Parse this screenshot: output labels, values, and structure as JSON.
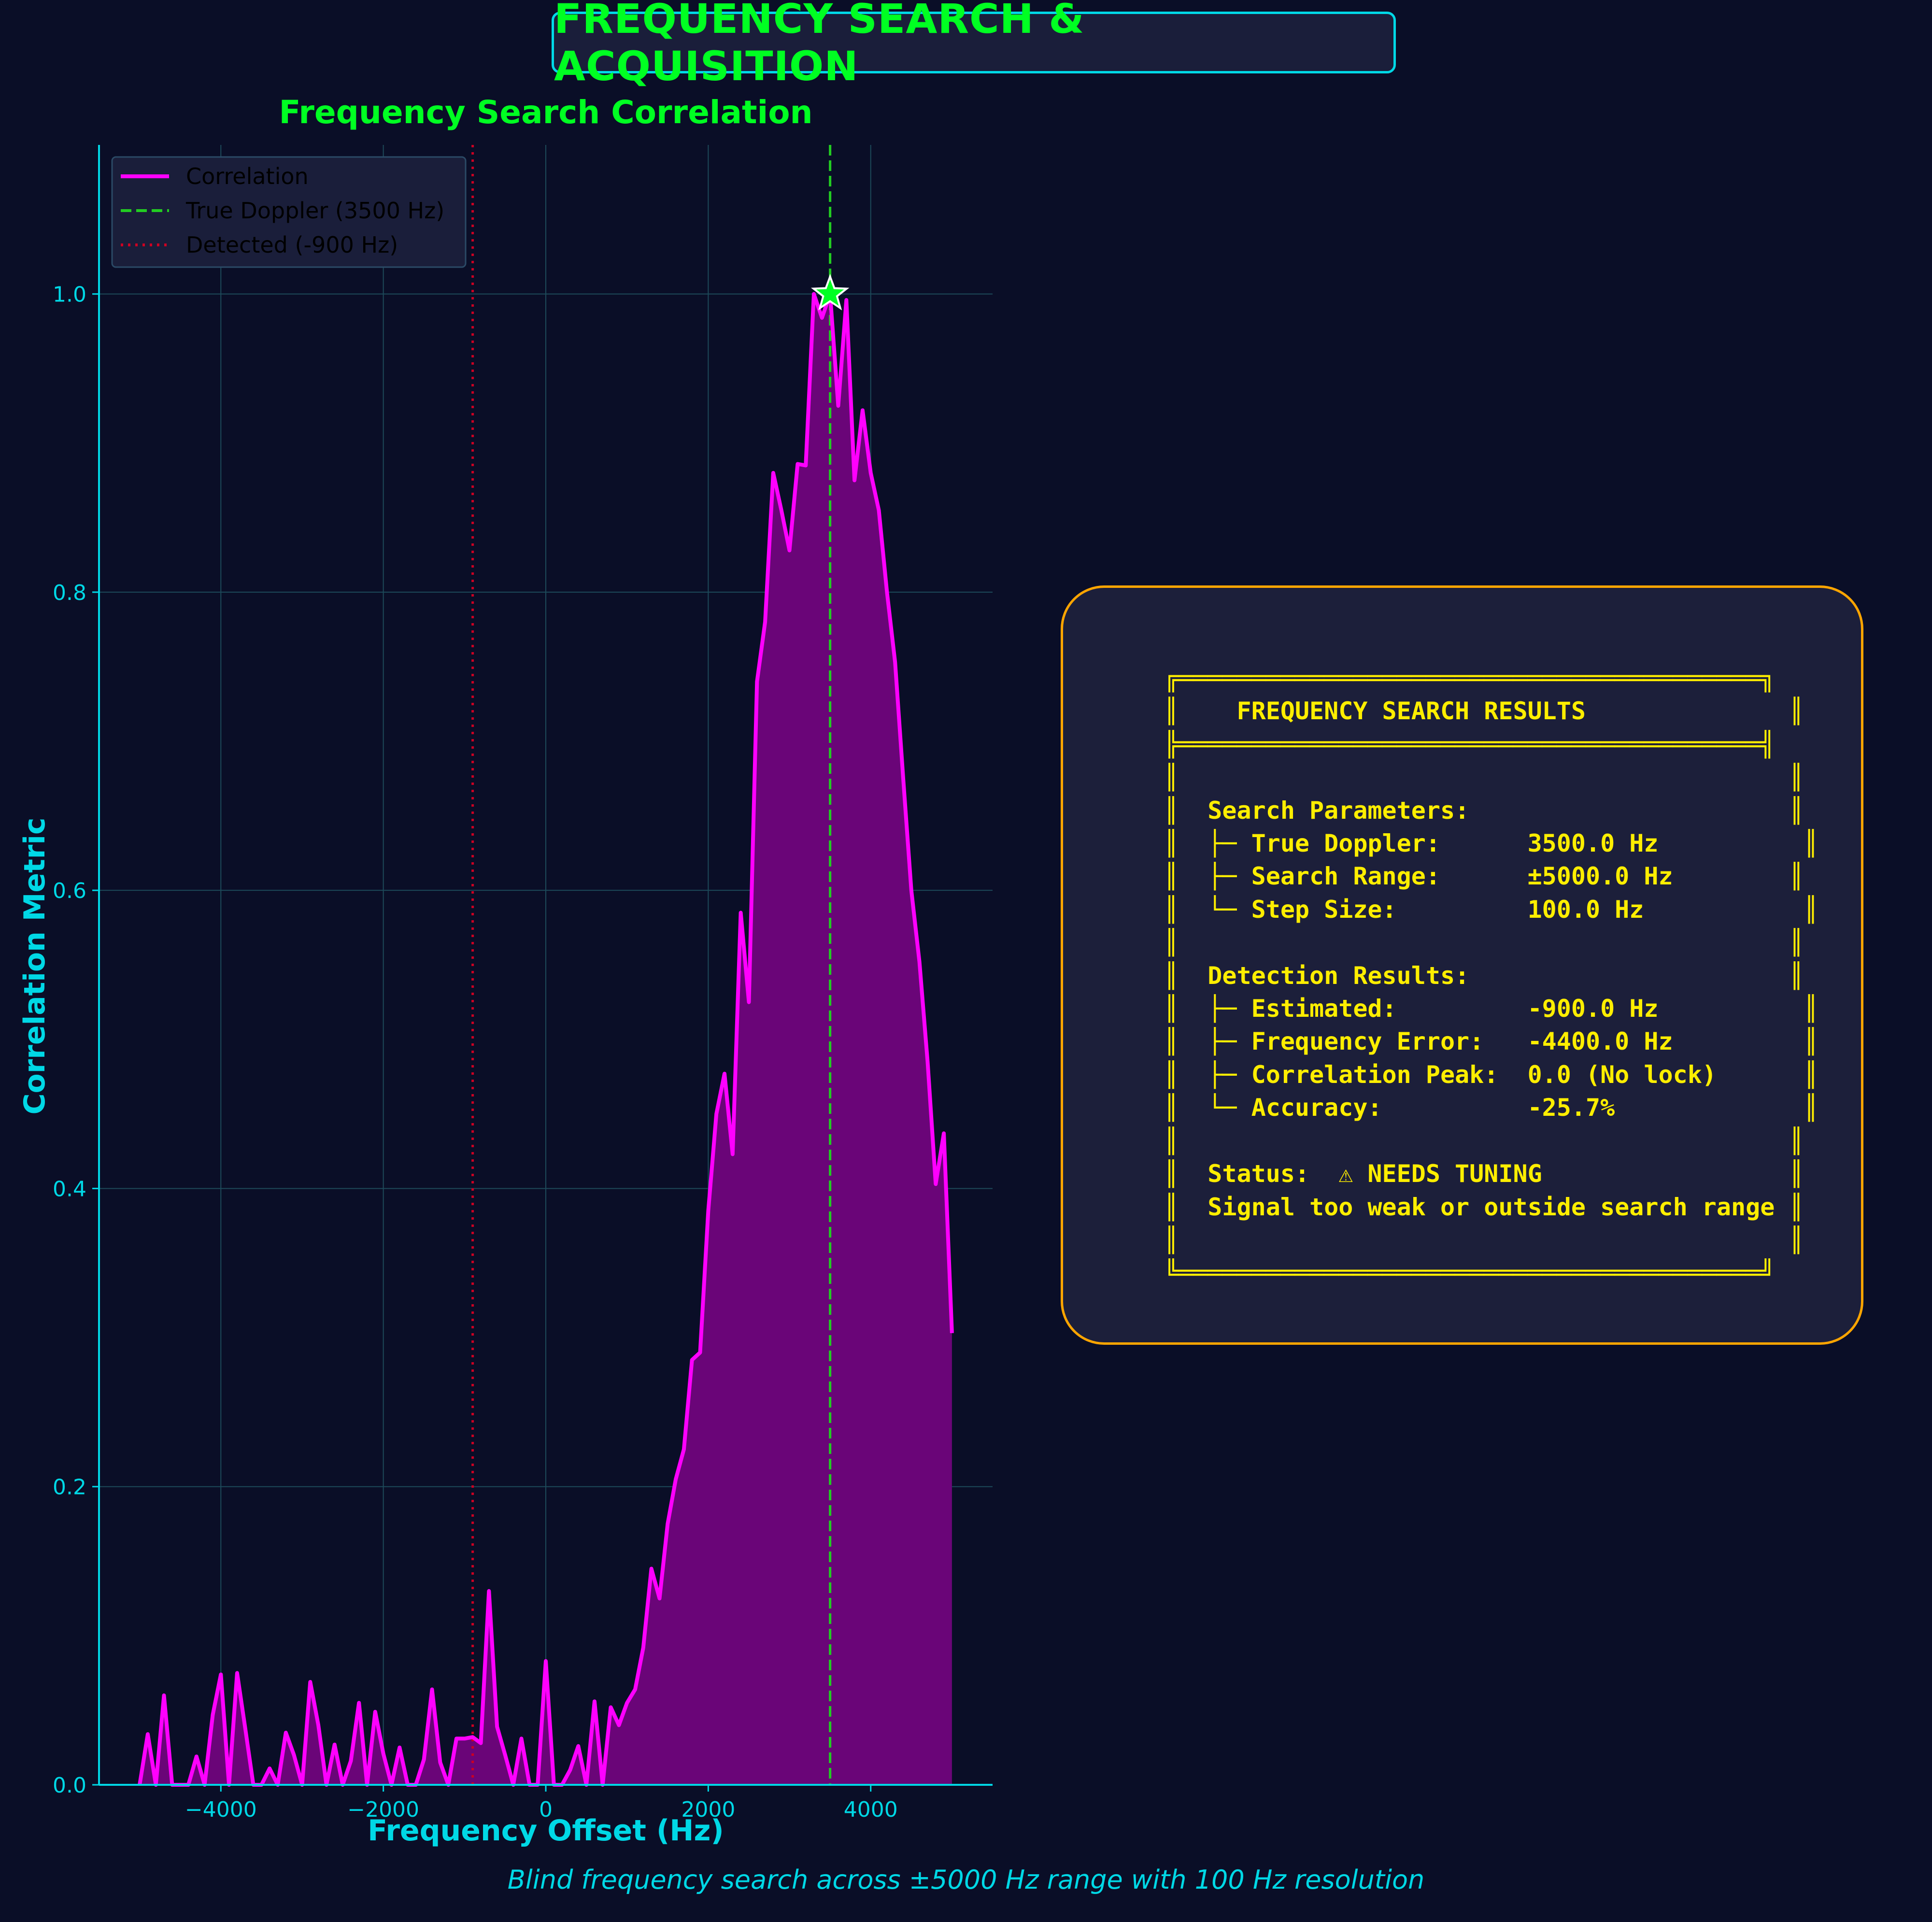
{
  "title": "FREQUENCY SEARCH & ACQUISITION",
  "caption": "Blind frequency search across ±5000 Hz range with 100 Hz resolution",
  "colors": {
    "background": "#0a0e27",
    "accent_cyan": "#00d8e6",
    "title_green": "#00ff22",
    "correlation": "#ff00ff",
    "fill": "#6a0578",
    "true_doppler": "#22cc22",
    "detected": "#cc0022",
    "results_text": "#ffee00",
    "panel_border": "#ffa500"
  },
  "chart_data": {
    "type": "line",
    "title": "Frequency Search Correlation",
    "xlabel": "Frequency Offset (Hz)",
    "ylabel": "Correlation Metric",
    "xlim": [
      -5500,
      5500
    ],
    "ylim": [
      0,
      1.1
    ],
    "xticks": [
      -4000,
      -2000,
      0,
      2000,
      4000
    ],
    "xtick_labels": [
      "−4000",
      "−2000",
      "0",
      "2000",
      "4000"
    ],
    "yticks": [
      0.0,
      0.2,
      0.4,
      0.6,
      0.8,
      1.0
    ],
    "ytick_labels": [
      "0.0",
      "0.2",
      "0.4",
      "0.6",
      "0.8",
      "1.0"
    ],
    "grid": true,
    "legend": "top-left",
    "series": [
      {
        "name": "Correlation",
        "style": "solid",
        "filled": true,
        "x": [
          -5000,
          -4900,
          -4800,
          -4700,
          -4600,
          -4500,
          -4400,
          -4300,
          -4200,
          -4100,
          -4000,
          -3900,
          -3800,
          -3700,
          -3600,
          -3500,
          -3400,
          -3300,
          -3200,
          -3100,
          -3000,
          -2900,
          -2800,
          -2700,
          -2600,
          -2500,
          -2400,
          -2300,
          -2200,
          -2100,
          -2000,
          -1900,
          -1800,
          -1700,
          -1600,
          -1500,
          -1400,
          -1300,
          -1200,
          -1100,
          -1000,
          -900,
          -800,
          -700,
          -600,
          -500,
          -400,
          -300,
          -200,
          -100,
          0,
          100,
          200,
          300,
          400,
          500,
          600,
          700,
          800,
          900,
          1000,
          1100,
          1200,
          1300,
          1400,
          1500,
          1600,
          1700,
          1800,
          1900,
          2000,
          2100,
          2200,
          2300,
          2400,
          2500,
          2600,
          2700,
          2800,
          2900,
          3000,
          3100,
          3200,
          3300,
          3400,
          3500,
          3600,
          3700,
          3800,
          3900,
          4000,
          4100,
          4200,
          4300,
          4400,
          4500,
          4600,
          4700,
          4800,
          4900,
          5000
        ],
        "y": [
          0.0,
          0.034,
          0.0,
          0.06,
          0.0,
          0.0,
          0.0,
          0.019,
          0.0,
          0.047,
          0.074,
          0.0,
          0.075,
          0.038,
          0.0,
          0.0,
          0.011,
          0.0,
          0.035,
          0.02,
          0.0,
          0.069,
          0.04,
          0.0,
          0.027,
          0.0,
          0.016,
          0.055,
          0.0,
          0.049,
          0.021,
          0.0,
          0.025,
          0.0,
          0.0,
          0.017,
          0.064,
          0.015,
          0.0,
          0.031,
          0.031,
          0.032,
          0.028,
          0.13,
          0.039,
          0.02,
          0.0,
          0.031,
          0.0,
          0.0,
          0.083,
          0.0,
          0.0,
          0.01,
          0.026,
          0.0,
          0.056,
          0.0,
          0.052,
          0.04,
          0.055,
          0.064,
          0.092,
          0.145,
          0.125,
          0.175,
          0.205,
          0.225,
          0.285,
          0.29,
          0.385,
          0.45,
          0.477,
          0.423,
          0.585,
          0.525,
          0.74,
          0.78,
          0.88,
          0.855,
          0.828,
          0.886,
          0.885,
          1.0,
          0.984,
          1.0,
          0.925,
          0.996,
          0.875,
          0.922,
          0.88,
          0.855,
          0.8,
          0.753,
          0.675,
          0.6,
          0.552,
          0.485,
          0.403,
          0.437,
          0.303
        ]
      },
      {
        "name": "True Doppler (3500 Hz)",
        "style": "dashed",
        "x_value": 3500
      },
      {
        "name": "Detected (-900 Hz)",
        "style": "dotted",
        "x_value": -900
      }
    ],
    "peak_marker": {
      "x": 3500,
      "y": 1.0,
      "shape": "star"
    }
  },
  "results_lines": [
    "╔════════════════════════════════════════╗",
    "║    FREQUENCY SEARCH RESULTS              ║",
    "╠════════════════════════════════════════╣",
    "║                                          ║",
    "║  Search Parameters:                      ║",
    "║  ├─ True Doppler:      3500.0 Hz          ║",
    "║  ├─ Search Range:      ±5000.0 Hz        ║",
    "║  └─ Step Size:         100.0 Hz           ║",
    "║                                          ║",
    "║  Detection Results:                      ║",
    "║  ├─ Estimated:         -900.0 Hz          ║",
    "║  ├─ Frequency Error:   -4400.0 Hz         ║",
    "║  ├─ Correlation Peak:  0.0 (No lock)      ║",
    "║  └─ Accuracy:          -25.7%             ║",
    "║                                          ║",
    "║  Status:  ⚠ NEEDS TUNING                 ║",
    "║  Signal too weak or outside search range ║",
    "║                                          ║",
    "╚════════════════════════════════════════╝"
  ]
}
